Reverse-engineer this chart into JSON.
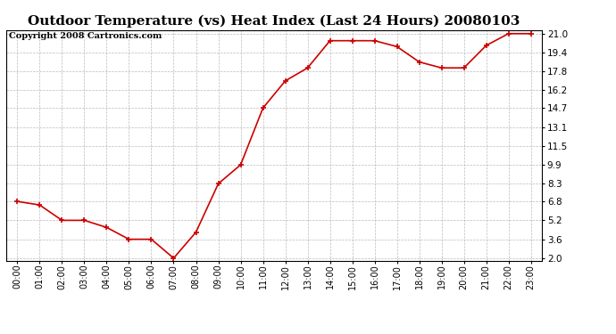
{
  "title": "Outdoor Temperature (vs) Heat Index (Last 24 Hours) 20080103",
  "copyright_text": "Copyright 2008 Cartronics.com",
  "x_labels": [
    "00:00",
    "01:00",
    "02:00",
    "03:00",
    "04:00",
    "05:00",
    "06:00",
    "07:00",
    "08:00",
    "09:00",
    "10:00",
    "11:00",
    "12:00",
    "13:00",
    "14:00",
    "15:00",
    "16:00",
    "17:00",
    "18:00",
    "19:00",
    "20:00",
    "21:00",
    "22:00",
    "23:00"
  ],
  "y_values": [
    6.8,
    6.5,
    5.2,
    5.2,
    4.6,
    3.6,
    3.6,
    2.0,
    4.2,
    8.3,
    9.9,
    14.7,
    17.0,
    18.1,
    20.4,
    20.4,
    20.4,
    19.9,
    18.6,
    18.1,
    18.1,
    20.0,
    21.0,
    21.0
  ],
  "line_color": "#cc0000",
  "marker_color": "#cc0000",
  "grid_color": "#aaaaaa",
  "background_color": "#ffffff",
  "plot_bg_color": "#ffffff",
  "yticks": [
    2.0,
    3.6,
    5.2,
    6.8,
    8.3,
    9.9,
    11.5,
    13.1,
    14.7,
    16.2,
    17.8,
    19.4,
    21.0
  ],
  "ylim": [
    1.8,
    21.3
  ],
  "title_fontsize": 11,
  "copyright_fontsize": 7
}
